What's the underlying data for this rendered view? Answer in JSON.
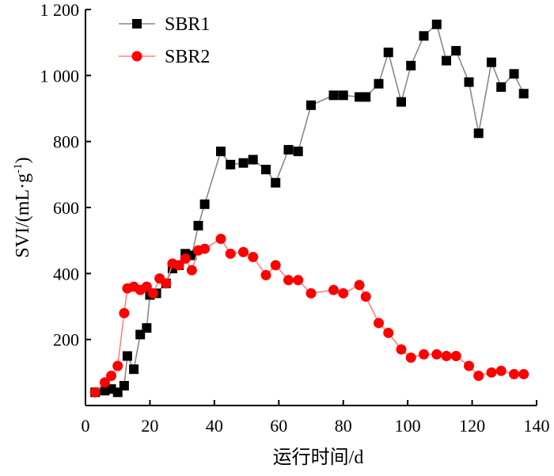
{
  "chart_data": {
    "type": "line",
    "title": "",
    "xlabel": "运行时间/d",
    "ylabel_parts": [
      "SVI/(mL·g",
      "-1",
      ")"
    ],
    "xlim": [
      0,
      140
    ],
    "ylim": [
      0,
      1200
    ],
    "xticks": [
      0,
      20,
      40,
      60,
      80,
      100,
      120,
      140
    ],
    "yticks": [
      200,
      400,
      600,
      800,
      1000,
      1200
    ],
    "xtick_labels": [
      "0",
      "20",
      "40",
      "60",
      "80",
      "100",
      "120",
      "140"
    ],
    "ytick_labels": [
      "200",
      "400",
      "600",
      "800",
      "1 000",
      "1 200"
    ],
    "legend_position": "top-left",
    "series": [
      {
        "name": "SBR1",
        "marker": "square",
        "marker_color": "#000000",
        "line_color": "#888888",
        "x": [
          3,
          6,
          8,
          10,
          12,
          13,
          15,
          17,
          19,
          20,
          22,
          25,
          27,
          29,
          31,
          33,
          35,
          37,
          42,
          45,
          49,
          52,
          56,
          59,
          63,
          66,
          70,
          77,
          80,
          85,
          87,
          91,
          94,
          98,
          101,
          105,
          109,
          112,
          115,
          119,
          122,
          126,
          129,
          133,
          136
        ],
        "values": [
          40,
          45,
          50,
          40,
          60,
          150,
          110,
          215,
          235,
          335,
          340,
          370,
          415,
          425,
          460,
          455,
          545,
          610,
          770,
          730,
          735,
          745,
          715,
          675,
          775,
          770,
          910,
          940,
          940,
          935,
          935,
          975,
          1070,
          920,
          1030,
          1120,
          1155,
          1045,
          1075,
          980,
          825,
          1040,
          965,
          1005,
          945
        ]
      },
      {
        "name": "SBR2",
        "marker": "circle",
        "marker_color": "#ff0000",
        "line_color": "#ff8080",
        "x": [
          3,
          6,
          8,
          10,
          12,
          13,
          15,
          17,
          19,
          21,
          23,
          25,
          27,
          29,
          31,
          33,
          35,
          37,
          42,
          45,
          49,
          52,
          56,
          59,
          63,
          66,
          70,
          77,
          80,
          85,
          87,
          91,
          94,
          98,
          101,
          105,
          109,
          112,
          115,
          119,
          122,
          126,
          129,
          133,
          136
        ],
        "values": [
          40,
          70,
          90,
          120,
          280,
          355,
          360,
          350,
          360,
          340,
          385,
          370,
          430,
          425,
          445,
          410,
          470,
          475,
          505,
          460,
          465,
          450,
          395,
          425,
          380,
          380,
          340,
          350,
          340,
          365,
          330,
          250,
          220,
          170,
          145,
          155,
          155,
          150,
          150,
          120,
          90,
          100,
          105,
          95,
          95
        ]
      }
    ]
  }
}
